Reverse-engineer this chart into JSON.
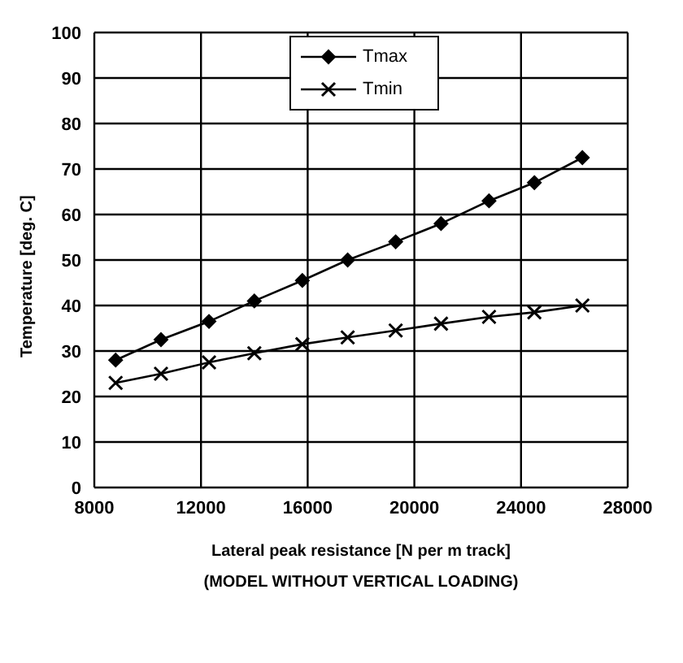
{
  "chart_data": {
    "type": "line",
    "xlabel": "Lateral peak resistance [N per m track]",
    "ylabel": "Temperature [deg. C]",
    "annotations": [
      "(MODEL WITHOUT VERTICAL LOADING)"
    ],
    "x": [
      8800,
      10500,
      12300,
      14000,
      15800,
      17500,
      19300,
      21000,
      22800,
      24500,
      26300
    ],
    "series": [
      {
        "name": "Tmax",
        "color": "#000000",
        "marker": "diamond",
        "values": [
          28,
          32.5,
          36.5,
          41,
          45.5,
          50,
          54,
          58,
          63,
          67,
          72.5
        ]
      },
      {
        "name": "Tmin",
        "color": "#000000",
        "marker": "cross",
        "values": [
          23,
          25,
          27.5,
          29.5,
          31.5,
          33,
          34.5,
          36,
          37.5,
          38.5,
          40
        ]
      }
    ],
    "xlim": [
      8000,
      28000
    ],
    "xticks": [
      8000,
      12000,
      16000,
      20000,
      24000,
      28000
    ],
    "ylim": [
      0,
      100
    ],
    "yticks": [
      0,
      10,
      20,
      30,
      40,
      50,
      60,
      70,
      80,
      90,
      100
    ],
    "grid": true,
    "legend": "top",
    "line_style": "solid"
  }
}
